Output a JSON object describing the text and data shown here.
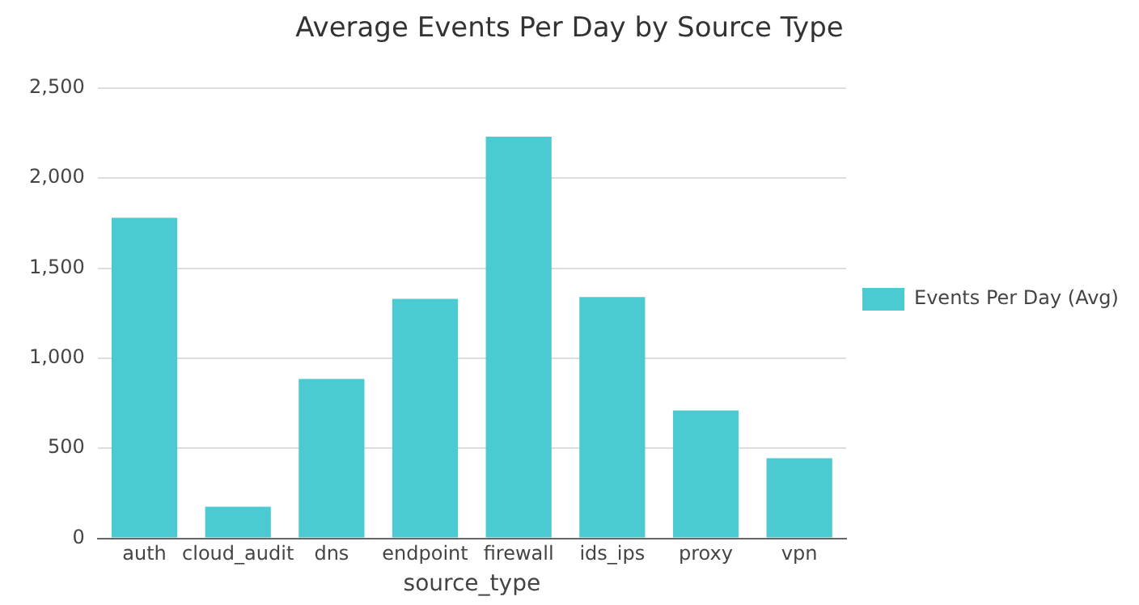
{
  "chart_data": {
    "type": "bar",
    "title": "Average Events Per Day by Source Type",
    "xlabel": "source_type",
    "categories": [
      "auth",
      "cloud_audit",
      "dns",
      "endpoint",
      "firewall",
      "ids_ips",
      "proxy",
      "vpn"
    ],
    "series": [
      {
        "name": "Events Per Day (Avg)",
        "color": "#4bcbd1",
        "values": [
          1780,
          175,
          885,
          1330,
          2230,
          1340,
          710,
          445
        ]
      }
    ],
    "ylim": [
      0,
      2500
    ],
    "yticks": [
      0,
      500,
      {
        "value": 1000,
        "label": "1,000"
      },
      {
        "value": 1500,
        "label": "1,500"
      },
      {
        "value": 2000,
        "label": "2,000"
      },
      {
        "value": 2500,
        "label": "2,500"
      }
    ],
    "grid": "y",
    "legend": "right"
  }
}
